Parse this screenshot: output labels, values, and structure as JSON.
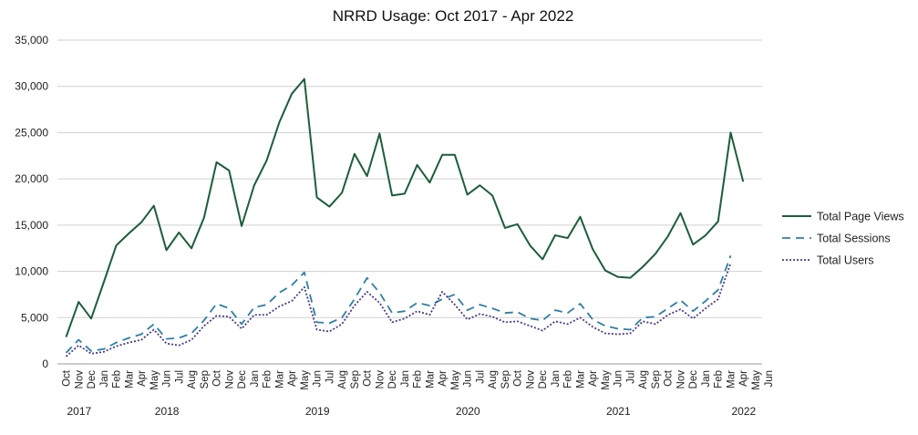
{
  "chart_data": {
    "type": "line",
    "title": "NRRD Usage: Oct 2017 - Apr 2022",
    "xlabel": "",
    "ylabel": "",
    "ylim": [
      0,
      35000
    ],
    "y_ticks": [
      "0",
      "5,000",
      "10,000",
      "15,000",
      "20,000",
      "25,000",
      "30,000",
      "35,000"
    ],
    "grid": "horizontal",
    "legend_position": "right",
    "categories": [
      "Oct",
      "Nov",
      "Dec",
      "Jan",
      "Feb",
      "Mar",
      "Apr",
      "May",
      "Jun",
      "Jul",
      "Aug",
      "Sep",
      "Oct",
      "Nov",
      "Dec",
      "Jan",
      "Feb",
      "Mar",
      "Apr",
      "May",
      "Jun",
      "Jul",
      "Aug",
      "Sep",
      "Oct",
      "Nov",
      "Dec",
      "Jan",
      "Feb",
      "Mar",
      "Apr",
      "May",
      "Jun",
      "Jul",
      "Aug",
      "Sep",
      "Oct",
      "Nov",
      "Dec",
      "Jan",
      "Feb",
      "Mar",
      "Apr",
      "May",
      "Jun",
      "Jul",
      "Aug",
      "Sep",
      "Oct",
      "Nov",
      "Dec",
      "Jan",
      "Feb",
      "Mar",
      "Apr",
      "May",
      "Jun"
    ],
    "year_labels": [
      {
        "label": "2017",
        "index": 0
      },
      {
        "label": "2018",
        "index": 7
      },
      {
        "label": "2019",
        "index": 19
      },
      {
        "label": "2020",
        "index": 31
      },
      {
        "label": "2021",
        "index": 43
      },
      {
        "label": "2022",
        "index": 53
      }
    ],
    "series": [
      {
        "name": "Total  Page Views",
        "color": "#1b5e3a",
        "style": "solid",
        "values": [
          2900,
          6700,
          4900,
          8800,
          12800,
          14100,
          15300,
          17100,
          12300,
          14200,
          12500,
          15800,
          21800,
          20900,
          14900,
          19300,
          22000,
          26100,
          29200,
          30800,
          18000,
          17000,
          18500,
          22700,
          20300,
          24900,
          18200,
          18400,
          21500,
          19600,
          22600,
          22600,
          18300,
          19300,
          18200,
          14700,
          15100,
          12800,
          11300,
          13900,
          13600,
          15900,
          12400,
          10100,
          9400,
          9300,
          10500,
          11900,
          13800,
          16300,
          12900,
          13900,
          15400,
          25000,
          19700,
          null,
          null
        ]
      },
      {
        "name": "Total  Sessions",
        "color": "#2e7ea6",
        "style": "dashed",
        "values": [
          1200,
          2600,
          1400,
          1600,
          2300,
          2800,
          3200,
          4300,
          2700,
          2800,
          3300,
          4700,
          6500,
          6000,
          4300,
          6100,
          6400,
          7700,
          8500,
          9900,
          4500,
          4400,
          5000,
          7000,
          9300,
          7700,
          5500,
          5700,
          6600,
          6300,
          7000,
          7500,
          5800,
          6400,
          6000,
          5500,
          5600,
          4900,
          4700,
          5800,
          5500,
          6500,
          4800,
          4100,
          3800,
          3700,
          5000,
          5100,
          6000,
          6900,
          5700,
          6800,
          8000,
          11700,
          null,
          null,
          null
        ]
      },
      {
        "name": "Total  Users",
        "color": "#4a3a8c",
        "style": "dotted",
        "values": [
          800,
          2000,
          1100,
          1300,
          1900,
          2300,
          2600,
          3700,
          2200,
          2000,
          2600,
          4100,
          5200,
          5100,
          3800,
          5300,
          5300,
          6200,
          6800,
          8300,
          3700,
          3500,
          4300,
          6300,
          7800,
          6600,
          4500,
          4900,
          5700,
          5300,
          7800,
          6400,
          4800,
          5400,
          5100,
          4500,
          4600,
          4100,
          3600,
          4600,
          4300,
          5000,
          4000,
          3300,
          3200,
          3300,
          4600,
          4300,
          5300,
          5900,
          4900,
          6000,
          7000,
          10900,
          null,
          null,
          null
        ]
      }
    ]
  }
}
